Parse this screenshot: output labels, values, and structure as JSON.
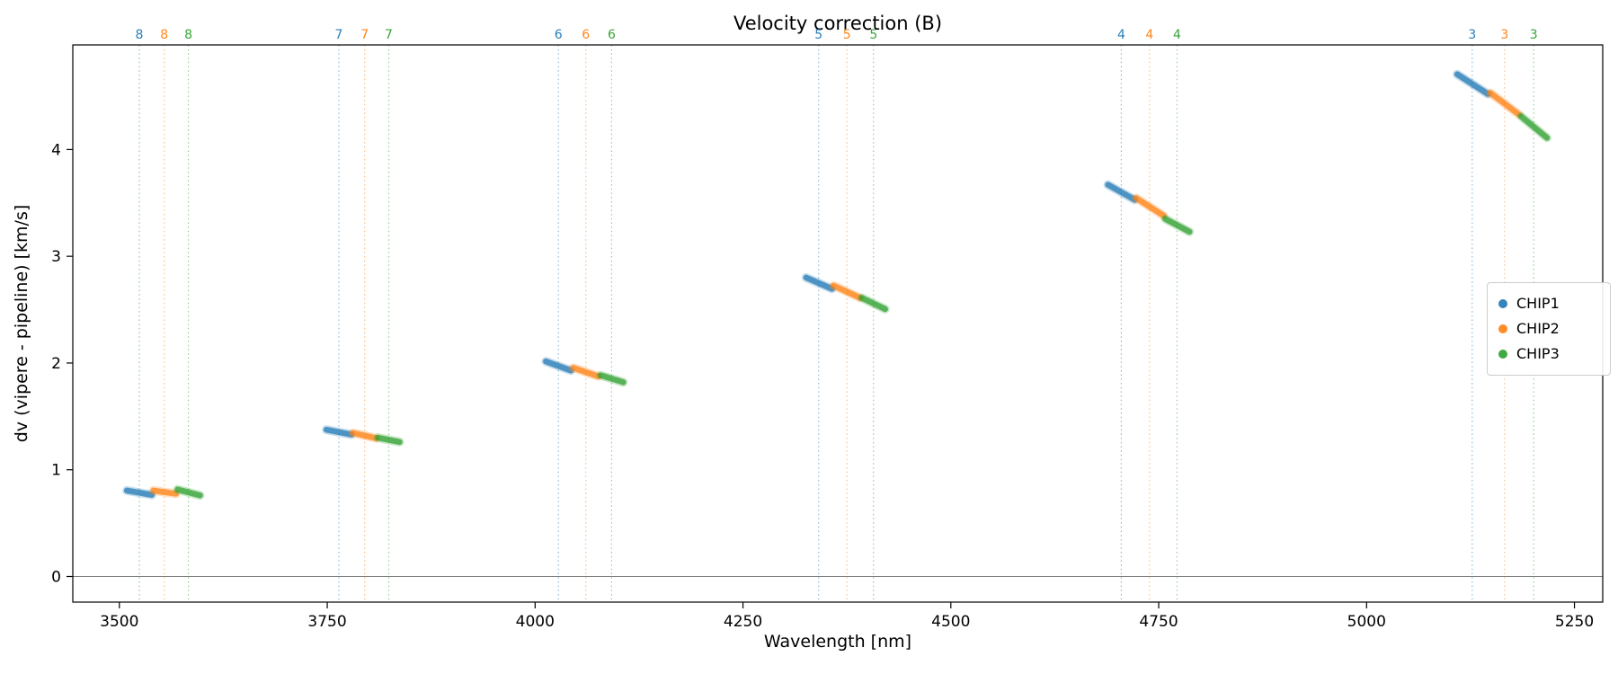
{
  "chart_data": {
    "type": "scatter",
    "title": "Velocity correction (B)",
    "xlabel": "Wavelength [nm]",
    "ylabel": "dv (vipere - pipeline) [km/s]",
    "xlim": [
      3444,
      5284
    ],
    "ylim": [
      -0.24,
      4.98
    ],
    "xticks": [
      3500,
      3750,
      4000,
      4250,
      4500,
      4750,
      5000,
      5250
    ],
    "yticks": [
      0,
      1,
      2,
      3,
      4
    ],
    "grid": false,
    "zero_line": {
      "y": 0,
      "color": "#808080"
    },
    "legend_position": "center right",
    "chips": [
      {
        "name": "CHIP1",
        "color": "#1f77b4"
      },
      {
        "name": "CHIP2",
        "color": "#ff7f0e"
      },
      {
        "name": "CHIP3",
        "color": "#2ca02c"
      }
    ],
    "orders": [
      {
        "order": 8,
        "marker_lines_nm": [
          3524,
          3554,
          3583
        ],
        "segments": [
          {
            "chip": "CHIP1",
            "x": [
              3509,
              3539
            ],
            "y": [
              0.805,
              0.765
            ]
          },
          {
            "chip": "CHIP2",
            "x": [
              3541,
              3568
            ],
            "y": [
              0.805,
              0.775
            ]
          },
          {
            "chip": "CHIP3",
            "x": [
              3570,
              3597
            ],
            "y": [
              0.815,
              0.76
            ]
          }
        ]
      },
      {
        "order": 7,
        "marker_lines_nm": [
          3764,
          3795,
          3824
        ],
        "segments": [
          {
            "chip": "CHIP1",
            "x": [
              3749,
              3779
            ],
            "y": [
              1.375,
              1.33
            ]
          },
          {
            "chip": "CHIP2",
            "x": [
              3781,
              3809
            ],
            "y": [
              1.345,
              1.295
            ]
          },
          {
            "chip": "CHIP3",
            "x": [
              3811,
              3837
            ],
            "y": [
              1.3,
              1.26
            ]
          }
        ]
      },
      {
        "order": 6,
        "marker_lines_nm": [
          4028,
          4061,
          4092
        ],
        "segments": [
          {
            "chip": "CHIP1",
            "x": [
              4013,
              4043
            ],
            "y": [
              2.015,
              1.93
            ]
          },
          {
            "chip": "CHIP2",
            "x": [
              4046,
              4076
            ],
            "y": [
              1.955,
              1.875
            ]
          },
          {
            "chip": "CHIP3",
            "x": [
              4079,
              4106
            ],
            "y": [
              1.885,
              1.82
            ]
          }
        ]
      },
      {
        "order": 5,
        "marker_lines_nm": [
          4341,
          4375,
          4407
        ],
        "segments": [
          {
            "chip": "CHIP1",
            "x": [
              4326,
              4357
            ],
            "y": [
              2.8,
              2.695
            ]
          },
          {
            "chip": "CHIP2",
            "x": [
              4359,
              4391
            ],
            "y": [
              2.725,
              2.61
            ]
          },
          {
            "chip": "CHIP3",
            "x": [
              4393,
              4421
            ],
            "y": [
              2.61,
              2.505
            ]
          }
        ]
      },
      {
        "order": 4,
        "marker_lines_nm": [
          4705,
          4739,
          4772
        ],
        "segments": [
          {
            "chip": "CHIP1",
            "x": [
              4689,
              4721
            ],
            "y": [
              3.67,
              3.53
            ]
          },
          {
            "chip": "CHIP2",
            "x": [
              4723,
              4756
            ],
            "y": [
              3.545,
              3.38
            ]
          },
          {
            "chip": "CHIP3",
            "x": [
              4758,
              4787
            ],
            "y": [
              3.35,
              3.23
            ]
          }
        ]
      },
      {
        "order": 3,
        "marker_lines_nm": [
          5127,
          5166,
          5201
        ],
        "segments": [
          {
            "chip": "CHIP1",
            "x": [
              5109,
              5146
            ],
            "y": [
              4.705,
              4.52
            ]
          },
          {
            "chip": "CHIP2",
            "x": [
              5149,
              5183
            ],
            "y": [
              4.53,
              4.33
            ]
          },
          {
            "chip": "CHIP3",
            "x": [
              5186,
              5217
            ],
            "y": [
              4.31,
              4.11
            ]
          }
        ]
      }
    ]
  }
}
